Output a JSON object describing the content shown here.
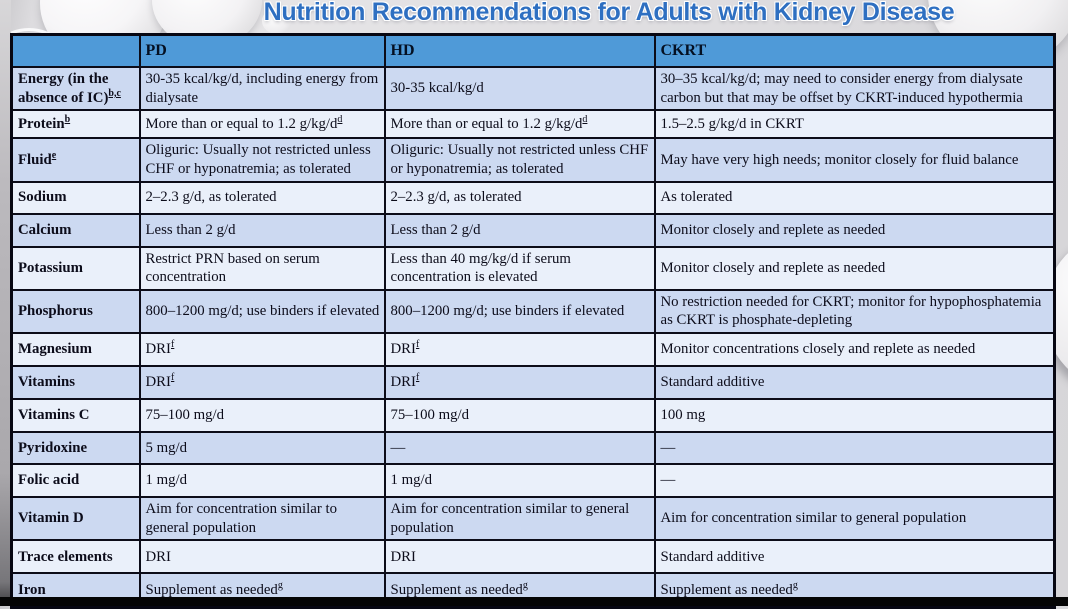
{
  "title": "Nutrition Recommendations for Adults with Kidney Disease",
  "colors": {
    "header_bg": "#4f9ad8",
    "row_stripe_dark": "#ccd9f1",
    "row_stripe_light": "#eaf0fa",
    "title_text": "#2e6fc1",
    "table_border": "#0c0c18"
  },
  "table": {
    "columns": [
      "",
      "PD",
      "HD",
      "CKRT"
    ],
    "rows": [
      [
        "Energy (in the absence of IC)^b,c^",
        "30-35 kcal/kg/d, including energy from dialysate",
        "30-35 kcal/kg/d",
        "30–35 kcal/kg/d; may need to consider energy from dialysate carbon but that may be offset by CKRT-induced hypothermia"
      ],
      [
        "Protein^b^",
        "More than or equal to 1.2 g/kg/d^d^",
        "More than or equal to 1.2 g/kg/d^d^",
        "1.5–2.5 g/kg/d in CKRT"
      ],
      [
        "Fluid^e^",
        "Oliguric: Usually not restricted unless CHF or hyponatremia; as tolerated",
        "Oliguric: Usually not restricted unless CHF or hyponatremia; as tolerated",
        "May have very high needs; monitor closely for fluid balance"
      ],
      [
        "Sodium",
        "2–2.3 g/d, as tolerated",
        "2–2.3 g/d, as tolerated",
        "As tolerated"
      ],
      [
        "Calcium",
        "Less than 2 g/d",
        "Less than 2 g/d",
        "Monitor closely and replete as needed"
      ],
      [
        "Potassium",
        "Restrict PRN based on serum concentration",
        "Less than 40 mg/kg/d if serum concentration is elevated",
        "Monitor closely and replete as needed"
      ],
      [
        "Phosphorus",
        "800–1200 mg/d; use binders if elevated",
        "800–1200 mg/d; use binders if elevated",
        "No restriction needed for CKRT; monitor for hypophosphatemia as CKRT is phosphate-depleting"
      ],
      [
        "Magnesium",
        "DRI^f^",
        "DRI^f^",
        "Monitor concentrations closely and replete as needed"
      ],
      [
        "Vitamins",
        "DRI^f^",
        "DRI^f^",
        "Standard additive"
      ],
      [
        "Vitamins C",
        "75–100 mg/d",
        "75–100 mg/d",
        "100 mg"
      ],
      [
        "Pyridoxine",
        "5 mg/d",
        "—",
        "—"
      ],
      [
        "Folic acid",
        "1 mg/d",
        "1 mg/d",
        "—"
      ],
      [
        "Vitamin D",
        "Aim for concentration similar to general population",
        "Aim for concentration similar to general population",
        "Aim for concentration similar to general population"
      ],
      [
        "Trace elements",
        "DRI",
        "DRI",
        "Standard additive"
      ],
      [
        "Iron",
        "Supplement as needed^g^",
        "Supplement as needed^g^",
        "Supplement as needed^g^"
      ]
    ]
  }
}
